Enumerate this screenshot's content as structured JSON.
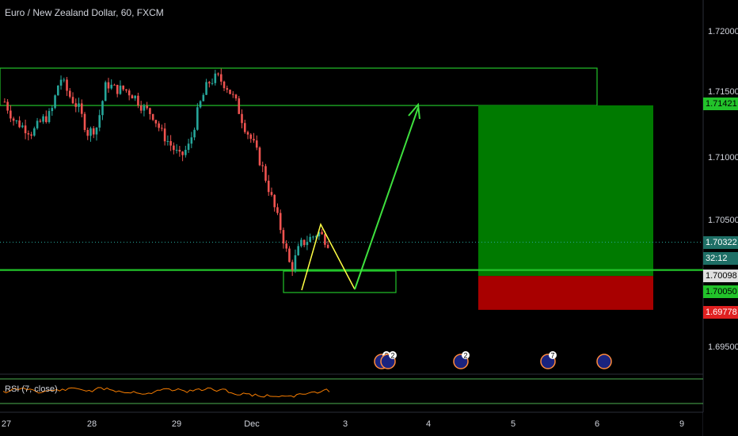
{
  "title": "Euro / New Zealand Dollar, 60, FXCM",
  "rsi_label": "RSI (7, close)",
  "colors": {
    "background": "#000000",
    "up": "#26a69a",
    "down": "#ef5350",
    "zone": "#22c32a",
    "target": "#007a00",
    "stop": "#a80000",
    "arrow": "#3ee03e",
    "pattern": "#ffff44",
    "rsi_line": "#f57c00",
    "rsi_band": "#4caf50"
  },
  "badges": {
    "target": "1.71421",
    "current": "1.70322",
    "countdown": "32:12",
    "support": "1.70098",
    "entry": "1.70050",
    "stop": "1.69778"
  },
  "chart_data": {
    "type": "candlestick",
    "title": "Euro / New Zealand Dollar, 60, FXCM",
    "y_ticks": [
      "1.72000",
      "1.71500",
      "1.71000",
      "1.70500",
      "1.69500"
    ],
    "x_ticks": [
      "27",
      "28",
      "29",
      "Dec",
      "3",
      "4",
      "5",
      "6",
      "9"
    ],
    "close_path": [
      1.7145,
      1.713,
      1.7125,
      1.712,
      1.713,
      1.7135,
      1.7165,
      1.715,
      1.714,
      1.712,
      1.7125,
      1.716,
      1.7155,
      1.7155,
      1.715,
      1.714,
      1.7135,
      1.712,
      1.711,
      1.71,
      1.711,
      1.714,
      1.716,
      1.7165,
      1.7158,
      1.7145,
      1.7125,
      1.711,
      1.709,
      1.7065,
      1.704,
      1.701,
      1.703,
      1.7035,
      1.704,
      1.7032
    ],
    "levels": {
      "resistance_zone": [
        1.7142,
        1.7172
      ],
      "support_line": 1.70098,
      "target": 1.71421,
      "current": 1.70322,
      "entry": 1.7005,
      "stop": 1.69778
    },
    "events": [
      "2",
      "2",
      "2",
      "7",
      ""
    ],
    "rsi": {
      "label": "RSI (7, close)",
      "levels": [
        70,
        30
      ]
    }
  }
}
